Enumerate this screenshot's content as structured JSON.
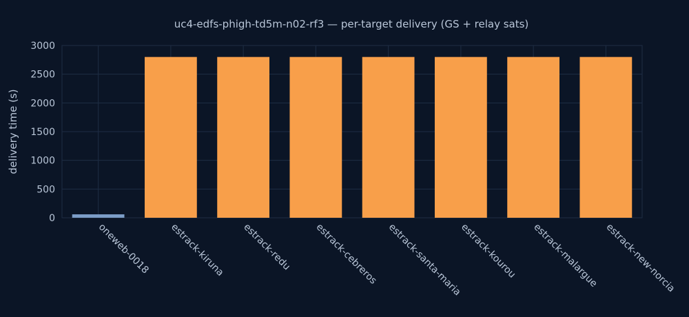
{
  "colors": {
    "background": "#0b1526",
    "text": "#b9c6d8",
    "grid": "#1f2d44",
    "bar_relay": "#7b9cc6",
    "bar_ground": "#f89f4a"
  },
  "chart_data": {
    "type": "bar",
    "title": "uc4-edfs-phigh-td5m-n02-rf3 — per-target delivery (GS + relay sats)",
    "xlabel": "",
    "ylabel": "delivery time (s)",
    "ylim": [
      0,
      3000
    ],
    "yticks": [
      0,
      500,
      1000,
      1500,
      2000,
      2500,
      3000
    ],
    "grid": true,
    "legend": "none",
    "categories": [
      "oneweb-0018",
      "estrack-kiruna",
      "estrack-redu",
      "estrack-cebreros",
      "estrack-santa-maria",
      "estrack-kourou",
      "estrack-malargue",
      "estrack-new-norcia"
    ],
    "values": [
      60,
      2800,
      2800,
      2800,
      2800,
      2800,
      2800,
      2800
    ],
    "bar_colors": [
      "#7b9cc6",
      "#f89f4a",
      "#f89f4a",
      "#f89f4a",
      "#f89f4a",
      "#f89f4a",
      "#f89f4a",
      "#f89f4a"
    ]
  }
}
